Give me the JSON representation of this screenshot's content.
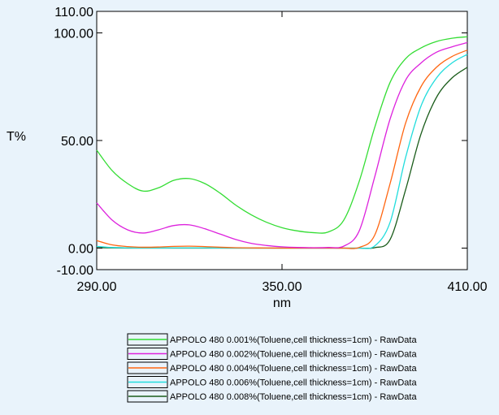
{
  "chart_data": {
    "type": "line",
    "title": "",
    "xlabel": "nm",
    "ylabel": "T%",
    "xlim": [
      290,
      410
    ],
    "ylim": [
      -10,
      110
    ],
    "x_ticks": [
      290,
      350,
      410
    ],
    "x_tick_labels": [
      "290.00",
      "350.00",
      "410.00"
    ],
    "y_ticks": [
      110,
      100,
      50,
      0,
      -10
    ],
    "y_tick_labels": [
      "110.00",
      "100.00",
      "50.00",
      "0.00",
      "-10.00"
    ],
    "grid": false,
    "legend_position": "bottom",
    "x": [
      290,
      295,
      300,
      305,
      310,
      315,
      320,
      325,
      330,
      335,
      340,
      345,
      350,
      355,
      360,
      365,
      370,
      375,
      380,
      385,
      390,
      395,
      400,
      405,
      410
    ],
    "series": [
      {
        "name": "APPOLO 480 0.001%(Toluene,cell thickness=1cm) - RawData",
        "color": "#33dd33",
        "values": [
          45.5,
          36,
          30,
          26.5,
          28,
          31.5,
          32.3,
          30,
          25.5,
          20,
          15.5,
          12,
          9.5,
          8,
          7.2,
          7.5,
          13,
          31,
          56,
          77,
          88,
          93,
          96,
          97.5,
          98.2
        ]
      },
      {
        "name": "APPOLO 480 0.002%(Toluene,cell thickness=1cm) - RawData",
        "color": "#dd22dd",
        "values": [
          21,
          13,
          8.5,
          7,
          8.5,
          10.5,
          10.8,
          9,
          6.5,
          4,
          2.2,
          1.2,
          0.6,
          0.3,
          0.2,
          0.3,
          0.9,
          8,
          33,
          60,
          78,
          86,
          91,
          93.5,
          95.5
        ]
      },
      {
        "name": "APPOLO 480 0.004%(Toluene,cell thickness=1cm) - RawData",
        "color": "#ff6611",
        "values": [
          3.5,
          1.5,
          0.7,
          0.4,
          0.5,
          0.8,
          0.9,
          0.7,
          0.4,
          0.2,
          0.1,
          0.05,
          0,
          0,
          0,
          0,
          0,
          0.3,
          6,
          30,
          58,
          75,
          84,
          89,
          92
        ]
      },
      {
        "name": "APPOLO 480 0.006%(Toluene,cell thickness=1cm) - RawData",
        "color": "#22dddd",
        "values": [
          0.8,
          0.3,
          0.1,
          0.05,
          0.05,
          0.1,
          0.1,
          0.1,
          0.05,
          0,
          0,
          0,
          0,
          0,
          0,
          0,
          0,
          0,
          1,
          12,
          42,
          66,
          79,
          86,
          90
        ]
      },
      {
        "name": "APPOLO 480 0.008%(Toluene,cell thickness=1cm) - RawData",
        "color": "#1a5c1a",
        "values": [
          0.2,
          0.1,
          0,
          0,
          0,
          0,
          0,
          0,
          0,
          0,
          0,
          0,
          0,
          0,
          0,
          0,
          0,
          0,
          0.2,
          4,
          27,
          53,
          70,
          79,
          84
        ]
      }
    ]
  }
}
